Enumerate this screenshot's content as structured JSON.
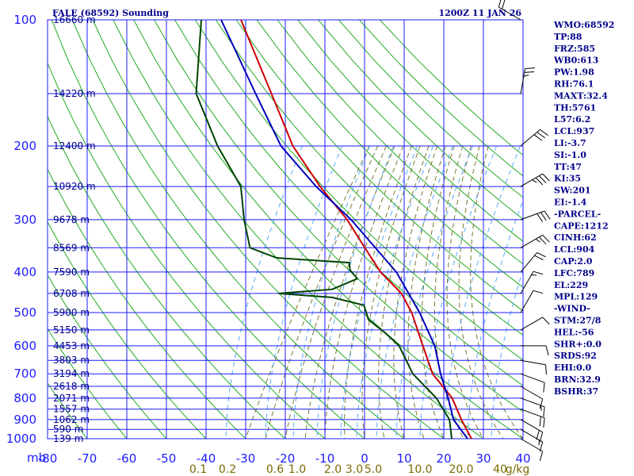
{
  "header": {
    "station": "FALE (68592) Sounding",
    "time": "1200Z 11 JAN 26"
  },
  "indices": [
    "WMO:68592",
    "TP:88",
    "FRZ:585",
    "WB0:613",
    "PW:1.98",
    "RH:76.1",
    "MAXT:32.4",
    "TH:5761",
    "L57:6.2",
    "LCL:937",
    "LI:-3.7",
    "SI:-1.0",
    "TT:47",
    "KI:35",
    "SW:201",
    "EI:-1.4",
    "-PARCEL-",
    "CAPE:1212",
    "CINH:62",
    "LCL:904",
    "CAP:2.0",
    "LFC:789",
    "EL:229",
    "MPL:129",
    "-WIND-",
    "STM:27/8",
    "HEL:-56",
    "SHR+:0.0",
    "SRDS:92",
    "EHI:0.0",
    "BRN:32.9",
    "BSHR:37"
  ],
  "colors": {
    "grid": "#1c1cff",
    "dry_adiabat": "#22aa22",
    "moist_adiabat": "#7a7a30",
    "mixing_ratio": "#55aaff",
    "temperature": "#cc0000",
    "dewpoint": "#004400",
    "parcel": "#0000bb",
    "wind": "#000000"
  },
  "chart_data": {
    "type": "line",
    "title": "FALE (68592) Sounding",
    "subtitle": "1200Z 11 JAN 26",
    "xlabel": "mb",
    "x_unit": "°C",
    "pressure_levels": [
      100,
      200,
      300,
      400,
      500,
      600,
      700,
      800,
      900,
      1000
    ],
    "temperature_ticks": [
      -80,
      -70,
      -60,
      -50,
      -40,
      -30,
      -20,
      -10,
      0,
      10,
      20,
      30,
      40
    ],
    "temperature_tick_labels": [
      "-80",
      "-70",
      "-60",
      "-50",
      "-40",
      "-30",
      "-20",
      "-10",
      "0",
      "10",
      "20",
      "30",
      "40"
    ],
    "mixing_ratio_labels": [
      "0.1",
      "0.2",
      "0.6",
      "1.0",
      "2.0",
      "3.0",
      "5.0",
      "10.0",
      "20.0",
      "40",
      "g/kg"
    ],
    "heights": [
      {
        "p": 100,
        "label": "16660 m"
      },
      {
        "p": 150,
        "label": "14220 m"
      },
      {
        "p": 200,
        "label": "12400 m"
      },
      {
        "p": 250,
        "label": "10920 m"
      },
      {
        "p": 300,
        "label": "9678 m"
      },
      {
        "p": 350,
        "label": "8569 m"
      },
      {
        "p": 400,
        "label": "7590 m"
      },
      {
        "p": 450,
        "label": "6708 m"
      },
      {
        "p": 500,
        "label": "5900 m"
      },
      {
        "p": 550,
        "label": "5150 m"
      },
      {
        "p": 600,
        "label": "4453 m"
      },
      {
        "p": 650,
        "label": "3803 m"
      },
      {
        "p": 700,
        "label": "3194 m"
      },
      {
        "p": 750,
        "label": "2618 m"
      },
      {
        "p": 800,
        "label": "2071 m"
      },
      {
        "p": 850,
        "label": "1557 m"
      },
      {
        "p": 900,
        "label": "1062 m"
      },
      {
        "p": 950,
        "label": "590 m"
      },
      {
        "p": 1000,
        "label": "139 m"
      }
    ],
    "series": [
      {
        "name": "Temperature",
        "points": [
          [
            100,
            -84
          ],
          [
            150,
            -67
          ],
          [
            200,
            -55
          ],
          [
            250,
            -43
          ],
          [
            300,
            -32
          ],
          [
            350,
            -24
          ],
          [
            400,
            -17
          ],
          [
            450,
            -9
          ],
          [
            500,
            -4
          ],
          [
            600,
            3
          ],
          [
            700,
            9
          ],
          [
            800,
            17
          ],
          [
            900,
            22
          ],
          [
            1000,
            27
          ]
        ]
      },
      {
        "name": "Dewpoint",
        "points": [
          [
            100,
            -94
          ],
          [
            150,
            -86
          ],
          [
            200,
            -74
          ],
          [
            250,
            -63
          ],
          [
            300,
            -58
          ],
          [
            350,
            -53
          ],
          [
            370,
            -45
          ],
          [
            380,
            -26
          ],
          [
            395,
            -25
          ],
          [
            415,
            -22
          ],
          [
            440,
            -27
          ],
          [
            450,
            -40
          ],
          [
            460,
            -26
          ],
          [
            480,
            -17
          ],
          [
            520,
            -14
          ],
          [
            560,
            -8
          ],
          [
            600,
            -3
          ],
          [
            700,
            4
          ],
          [
            800,
            13
          ],
          [
            900,
            19
          ],
          [
            1000,
            22
          ]
        ]
      },
      {
        "name": "Parcel",
        "points": [
          [
            100,
            -89
          ],
          [
            150,
            -71
          ],
          [
            200,
            -58
          ],
          [
            250,
            -44
          ],
          [
            300,
            -31
          ],
          [
            400,
            -13
          ],
          [
            500,
            -2
          ],
          [
            600,
            6
          ],
          [
            700,
            11
          ],
          [
            800,
            16
          ],
          [
            900,
            20
          ],
          [
            1000,
            26
          ]
        ]
      }
    ],
    "wind_barbs": [
      {
        "p": 100,
        "dir": 60,
        "kt": 20
      },
      {
        "p": 150,
        "dir": 350,
        "kt": 25
      },
      {
        "p": 200,
        "dir": 310,
        "kt": 30
      },
      {
        "p": 250,
        "dir": 300,
        "kt": 35
      },
      {
        "p": 300,
        "dir": 290,
        "kt": 30
      },
      {
        "p": 350,
        "dir": 300,
        "kt": 25
      },
      {
        "p": 400,
        "dir": 320,
        "kt": 20
      },
      {
        "p": 450,
        "dir": 330,
        "kt": 15
      },
      {
        "p": 500,
        "dir": 330,
        "kt": 10
      },
      {
        "p": 550,
        "dir": 300,
        "kt": 10
      },
      {
        "p": 600,
        "dir": 270,
        "kt": 10
      },
      {
        "p": 650,
        "dir": 260,
        "kt": 10
      },
      {
        "p": 700,
        "dir": 250,
        "kt": 10
      },
      {
        "p": 750,
        "dir": 240,
        "kt": 10
      },
      {
        "p": 800,
        "dir": 250,
        "kt": 15
      },
      {
        "p": 850,
        "dir": 250,
        "kt": 20
      },
      {
        "p": 900,
        "dir": 240,
        "kt": 20
      },
      {
        "p": 950,
        "dir": 240,
        "kt": 15
      },
      {
        "p": 1000,
        "dir": 240,
        "kt": 10
      }
    ]
  }
}
